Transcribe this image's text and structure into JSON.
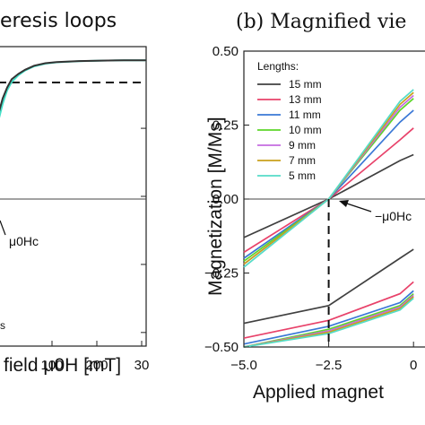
{
  "chart_data": [
    {
      "type": "line",
      "title": "eresis loops",
      "xlabel": "field μ0H [mT]",
      "xticks": [
        "100",
        "200",
        "30"
      ],
      "xlim": [
        -30,
        300
      ],
      "ylim": [
        -1.1,
        1.1
      ],
      "saturation_level": 1.0,
      "annotation": "μ0Hc",
      "annotation_small": "s",
      "series": [
        {
          "color": "#44e0c8",
          "x": [
            -30,
            -20,
            -10,
            0,
            15,
            30,
            50,
            75,
            100,
            150,
            200,
            250,
            300
          ],
          "y": [
            0.55,
            0.68,
            0.78,
            0.84,
            0.89,
            0.925,
            0.955,
            0.975,
            0.985,
            0.993,
            0.997,
            0.999,
            1.0
          ]
        },
        {
          "color": "#333333",
          "x": [
            -30,
            -20,
            -10,
            0,
            15,
            30,
            50,
            75,
            100,
            150,
            200,
            250,
            300
          ],
          "y": [
            0.6,
            0.72,
            0.8,
            0.86,
            0.9,
            0.93,
            0.96,
            0.978,
            0.987,
            0.994,
            0.997,
            0.999,
            1.0
          ]
        }
      ]
    },
    {
      "type": "line",
      "title": "(b) Magnified vie",
      "xlabel": "Applied magnet",
      "ylabel": "Magnetization [M/Ms]",
      "xlim": [
        -5.0,
        0.0
      ],
      "ylim": [
        -0.5,
        0.5
      ],
      "xticks": [
        "−5.0",
        "−2.5",
        "0"
      ],
      "yticks": [
        "0.50",
        "0.25",
        "0.00",
        "−0.25",
        "−0.50"
      ],
      "coercive_field": -2.5,
      "annotation": "−μ0Hc",
      "legend_title": "Lengths:",
      "legend_position": "top-left",
      "series": [
        {
          "name": "15 mm",
          "color": "#404040",
          "upper": {
            "x": [
              -5.0,
              -2.5,
              -0.4,
              0.0
            ],
            "y": [
              -0.13,
              0.0,
              0.13,
              0.15
            ]
          },
          "lower": {
            "x": [
              -5.0,
              -2.5,
              -0.4,
              0.0
            ],
            "y": [
              -0.42,
              -0.36,
              -0.2,
              -0.17
            ]
          }
        },
        {
          "name": "13 mm",
          "color": "#e8426a",
          "upper": {
            "x": [
              -5.0,
              -2.5,
              -0.4,
              0.0
            ],
            "y": [
              -0.18,
              0.0,
              0.2,
              0.24
            ]
          },
          "lower": {
            "x": [
              -5.0,
              -2.5,
              -0.4,
              0.0
            ],
            "y": [
              -0.47,
              -0.41,
              -0.32,
              -0.28
            ]
          }
        },
        {
          "name": "11 mm",
          "color": "#3a78d6",
          "upper": {
            "x": [
              -5.0,
              -2.5,
              -0.4,
              0.0
            ],
            "y": [
              -0.2,
              0.0,
              0.26,
              0.3
            ]
          },
          "lower": {
            "x": [
              -5.0,
              -2.5,
              -0.4,
              0.0
            ],
            "y": [
              -0.49,
              -0.43,
              -0.35,
              -0.31
            ]
          }
        },
        {
          "name": "10 mm",
          "color": "#5dd62a",
          "upper": {
            "x": [
              -5.0,
              -2.5,
              -0.4,
              0.0
            ],
            "y": [
              -0.21,
              0.0,
              0.3,
              0.34
            ]
          },
          "lower": {
            "x": [
              -5.0,
              -2.5,
              -0.4,
              0.0
            ],
            "y": [
              -0.5,
              -0.44,
              -0.36,
              -0.32
            ]
          }
        },
        {
          "name": "9 mm",
          "color": "#c46be0",
          "upper": {
            "x": [
              -5.0,
              -2.5,
              -0.4,
              0.0
            ],
            "y": [
              -0.22,
              0.0,
              0.31,
              0.35
            ]
          },
          "lower": {
            "x": [
              -5.0,
              -2.5,
              -0.4,
              0.0
            ],
            "y": [
              -0.5,
              -0.445,
              -0.365,
              -0.325
            ]
          }
        },
        {
          "name": "7 mm",
          "color": "#c9a01c",
          "upper": {
            "x": [
              -5.0,
              -2.5,
              -0.4,
              0.0
            ],
            "y": [
              -0.22,
              0.0,
              0.32,
              0.36
            ]
          },
          "lower": {
            "x": [
              -5.0,
              -2.5,
              -0.4,
              0.0
            ],
            "y": [
              -0.5,
              -0.45,
              -0.37,
              -0.33
            ]
          }
        },
        {
          "name": "5 mm",
          "color": "#54dcc8",
          "upper": {
            "x": [
              -5.0,
              -2.5,
              -0.4,
              0.0
            ],
            "y": [
              -0.23,
              0.0,
              0.33,
              0.37
            ]
          },
          "lower": {
            "x": [
              -5.0,
              -2.5,
              -0.4,
              0.0
            ],
            "y": [
              -0.5,
              -0.455,
              -0.375,
              -0.335
            ]
          }
        }
      ]
    }
  ]
}
